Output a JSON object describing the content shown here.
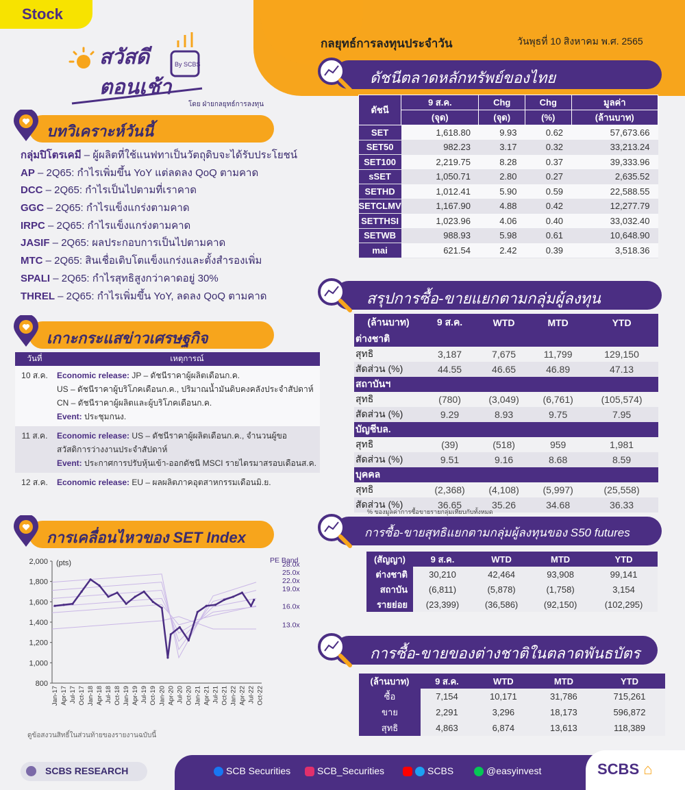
{
  "header": {
    "tag": "Stock",
    "logo_line1": "สวัสดี",
    "logo_line2": "ตอนเช้า",
    "logo_by": "By SCBS",
    "byline": "โดย ฝ่ายกลยุทธ์การลงทุน",
    "title": "กลยุทธ์การลงทุนประจำวัน",
    "date": "วันพุธที่ 10 สิงหาคม พ.ศ. 2565"
  },
  "sections": {
    "analysis": "บทวิเคราะห์วันนี้",
    "news": "เกาะกระแสข่าวเศรษฐกิจ",
    "set_move": "การเคลื่อนไหวของ SET Index",
    "thai_index": "ดัชนีตลาดหลักทรัพย์ของไทย",
    "investor_summary": "สรุปการซื้อ-ขายแยกตามกลุ่มผู้ลงทุน",
    "futures": "การซื้อ-ขายสุทธิแยกตามกลุ่มผู้ลงทุนของ S50 futures",
    "bonds": "การซื้อ-ขายของต่างชาติในตลาดพันธบัตร"
  },
  "analysis_items": [
    {
      "name": "กลุ่มปิโตรเคมี",
      "text": " – ผู้ผลิตที่ใช้แนฟทาเป็นวัตถุดิบจะได้รับประโยชน์"
    },
    {
      "name": "AP",
      "text": " – 2Q65: กำไรเพิ่มขึ้น YoY แต่ลดลง QoQ ตามคาด"
    },
    {
      "name": "DCC",
      "text": " – 2Q65: กำไรเป็นไปตามที่เราคาด"
    },
    {
      "name": "GGC",
      "text": " – 2Q65: กำไรแข็งแกร่งตามคาด"
    },
    {
      "name": "IRPC",
      "text": " – 2Q65: กำไรแข็งแกร่งตามคาด"
    },
    {
      "name": "JASIF",
      "text": " – 2Q65: ผลประกอบการเป็นไปตามคาด"
    },
    {
      "name": "MTC",
      "text": " – 2Q65: สินเชื่อเติบโตแข็งแกร่งและตั้งสำรองเพิ่ม"
    },
    {
      "name": "SPALI",
      "text": " – 2Q65: กำไรสุทธิสูงกว่าคาดอยู่ 30%"
    },
    {
      "name": "THREL",
      "text": " – 2Q65: กำไรเพิ่มขึ้น YoY, ลดลง QoQ ตามคาด"
    }
  ],
  "news": {
    "headers": [
      "วันที่",
      "เหตุการณ์"
    ],
    "rows": [
      {
        "date": "10 ส.ค.",
        "lines": [
          {
            "k": "Economic release:",
            "t": " JP – ดัชนีราคาผู้ผลิตเดือนก.ค."
          },
          {
            "k": "",
            "t": "US – ดัชนีราคาผู้บริโภคเดือนก.ค., ปริมาณน้ำมันดิบคงคลังประจำสัปดาห์"
          },
          {
            "k": "",
            "t": "CN – ดัชนีราคาผู้ผลิตและผู้บริโภคเดือนก.ค."
          },
          {
            "k": "Event:",
            "t": " ประชุมกนง."
          }
        ]
      },
      {
        "date": "11 ส.ค.",
        "lines": [
          {
            "k": "Economic release:",
            "t": " US – ดัชนีราคาผู้ผลิตเดือนก.ค., จำนวนผู้ขอ"
          },
          {
            "k": "",
            "t": "สวัสดิการว่างงานประจำสัปดาห์"
          },
          {
            "k": "Event:",
            "t": " ประกาศการปรับหุ้นเข้า-ออกดัชนี MSCI รายไตรมาสรอบเดือนส.ค."
          }
        ]
      },
      {
        "date": "12 ส.ค.",
        "lines": [
          {
            "k": "Economic release:",
            "t": " EU – ผลผลิตภาคอุตสาหกรรมเดือนมิ.ย."
          }
        ]
      }
    ]
  },
  "index_table": {
    "headers_top": [
      "ดัชนี",
      "9 ส.ค.",
      "Chg",
      "Chg",
      "มูลค่า"
    ],
    "headers_bottom": [
      "(จุด)",
      "(จุด)",
      "(%)",
      "(ล้านบาท)"
    ],
    "rows": [
      [
        "SET",
        "1,618.80",
        "9.93",
        "0.62",
        "57,673.66"
      ],
      [
        "SET50",
        "982.23",
        "3.17",
        "0.32",
        "33,213.24"
      ],
      [
        "SET100",
        "2,219.75",
        "8.28",
        "0.37",
        "39,333.96"
      ],
      [
        "sSET",
        "1,050.71",
        "2.80",
        "0.27",
        "2,635.52"
      ],
      [
        "SETHD",
        "1,012.41",
        "5.90",
        "0.59",
        "22,588.55"
      ],
      [
        "SETCLMV",
        "1,167.90",
        "4.88",
        "0.42",
        "12,277.79"
      ],
      [
        "SETTHSI",
        "1,023.96",
        "4.06",
        "0.40",
        "33,032.40"
      ],
      [
        "SETWB",
        "988.93",
        "5.98",
        "0.61",
        "10,648.90"
      ],
      [
        "mai",
        "621.54",
        "2.42",
        "0.39",
        "3,518.36"
      ]
    ]
  },
  "investor_table": {
    "headers": [
      "(ล้านบาท)",
      "9 ส.ค.",
      "WTD",
      "MTD",
      "YTD"
    ],
    "groups": [
      {
        "name": "ต่างชาติ",
        "net": [
          "3,187",
          "7,675",
          "11,799",
          "129,150"
        ],
        "ratio": [
          "44.55",
          "46.65",
          "46.89",
          "47.13"
        ]
      },
      {
        "name": "สถาบันฯ",
        "net": [
          "(780)",
          "(3,049)",
          "(6,761)",
          "(105,574)"
        ],
        "ratio": [
          "9.29",
          "8.93",
          "9.75",
          "7.95"
        ]
      },
      {
        "name": "บัญชีบล.",
        "net": [
          "(39)",
          "(518)",
          "959",
          "1,981"
        ],
        "ratio": [
          "9.51",
          "9.16",
          "8.68",
          "8.59"
        ]
      },
      {
        "name": "บุคคล",
        "net": [
          "(2,368)",
          "(4,108)",
          "(5,997)",
          "(25,558)"
        ],
        "ratio": [
          "36.65",
          "35.26",
          "34.68",
          "36.33"
        ]
      }
    ],
    "net_label": "สุทธิ",
    "ratio_label": "สัดส่วน (%)",
    "note": "% ของมูลค่าการซื้อขายรายกลุ่มเทียบกับทั้งหมด"
  },
  "futures_table": {
    "headers": [
      "(สัญญา)",
      "9 ส.ค.",
      "WTD",
      "MTD",
      "YTD"
    ],
    "rows": [
      [
        "ต่างชาติ",
        "30,210",
        "42,464",
        "93,908",
        "99,141"
      ],
      [
        "สถาบัน",
        "(6,811)",
        "(5,878)",
        "(1,758)",
        "3,154"
      ],
      [
        "รายย่อย",
        "(23,399)",
        "(36,586)",
        "(92,150)",
        "(102,295)"
      ]
    ]
  },
  "bond_table": {
    "headers": [
      "(ล้านบาท)",
      "9 ส.ค.",
      "WTD",
      "MTD",
      "YTD"
    ],
    "rows": [
      [
        "ซื้อ",
        "7,154",
        "10,171",
        "31,786",
        "715,261"
      ],
      [
        "ขาย",
        "2,291",
        "3,296",
        "18,173",
        "596,872"
      ],
      [
        "สุทธิ",
        "4,863",
        "6,874",
        "13,613",
        "118,389"
      ]
    ]
  },
  "chart_data": {
    "type": "line",
    "ylabel": "(pts)",
    "ylim": [
      800,
      2000
    ],
    "yticks": [
      "2,000",
      "1,800",
      "1,600",
      "1,400",
      "1,200",
      "1,000",
      "800"
    ],
    "xticks": [
      "Jan-17",
      "Apr-17",
      "Jul-17",
      "Oct-17",
      "Jan-18",
      "Apr-18",
      "Jul-18",
      "Oct-18",
      "Jan-19",
      "Apr-19",
      "Jul-19",
      "Oct-19",
      "Jan-20",
      "Apr-20",
      "Jul-20",
      "Oct-20",
      "Jan-21",
      "Apr-21",
      "Jul-21",
      "Oct-21",
      "Jan-22",
      "Apr-22",
      "Jul-22",
      "Oct-22"
    ],
    "pe_band_title": "PE Band",
    "pe_bands": [
      "28.0x",
      "25.0x",
      "22.0x",
      "19.0x",
      "16.0x",
      "13.0x"
    ],
    "series_color": "#4b2e83",
    "band_color": "#c9b6e6",
    "x": [
      "Jan-17",
      "Apr-17",
      "Jul-17",
      "Oct-17",
      "Jan-18",
      "Apr-18",
      "Jul-18",
      "Oct-18",
      "Jan-19",
      "Apr-19",
      "Jul-19",
      "Oct-19",
      "Jan-20",
      "Mar-20",
      "Apr-20",
      "Jul-20",
      "Oct-20",
      "Jan-21",
      "Apr-21",
      "Jul-21",
      "Oct-21",
      "Jan-22",
      "Apr-22",
      "Jul-22",
      "Aug-22"
    ],
    "values": [
      1560,
      1570,
      1580,
      1700,
      1820,
      1760,
      1650,
      1690,
      1580,
      1650,
      1700,
      1600,
      1540,
      1050,
      1280,
      1350,
      1220,
      1500,
      1560,
      1570,
      1620,
      1650,
      1690,
      1560,
      1619
    ]
  },
  "footer": {
    "research": "SCBS RESEARCH",
    "fb": "SCB Securities",
    "ig": "SCB_Securities",
    "yt": "SCBS",
    "line": "@easyinvest",
    "brand": "SCBS"
  },
  "disclaimer": "ดูข้อสงวนสิทธิ์ในส่วนท้ายของรายงานฉบับนี้"
}
